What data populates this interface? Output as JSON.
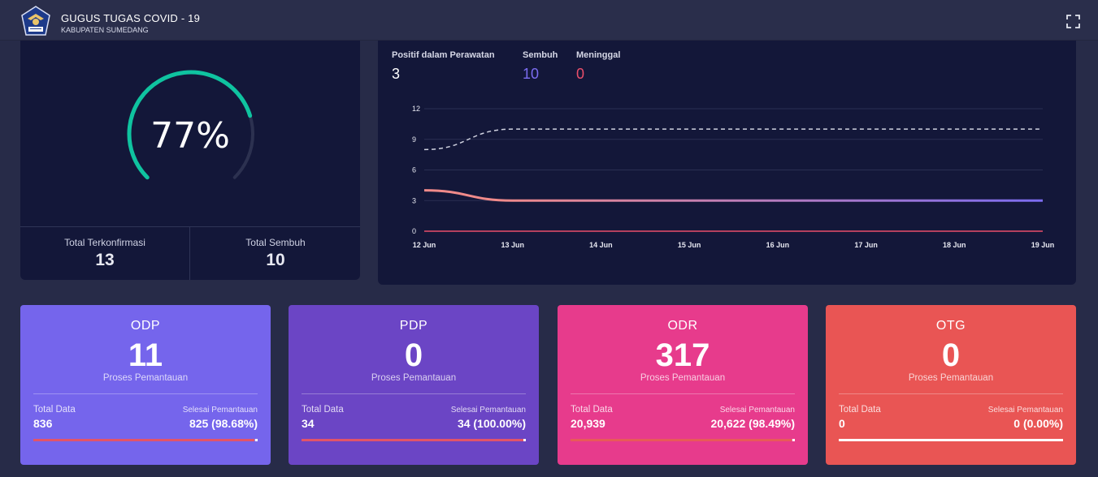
{
  "header": {
    "title": "GUGUS TUGAS COVID - 19",
    "subtitle": "KABUPATEN SUMEDANG",
    "logo_icon": "garuda-emblem-icon",
    "fullscreen_icon": "fullscreen-icon"
  },
  "gauge": {
    "percent_label": "77%",
    "percent": 0.77,
    "color": "#0fc3a0",
    "total_confirmed_label": "Total Terkonfirmasi",
    "total_confirmed": "13",
    "total_recovered_label": "Total Sembuh",
    "total_recovered": "10"
  },
  "legend": {
    "positive_label": "Positif dalam Perawatan",
    "positive_value": "3",
    "positive_color": "#ffffff",
    "recovered_label": "Sembuh",
    "recovered_value": "10",
    "recovered_color": "#7b6cf0",
    "died_label": "Meninggal",
    "died_value": "0",
    "died_color": "#ea4f6a"
  },
  "chart_data": {
    "type": "line",
    "x": [
      "12 Jun",
      "13 Jun",
      "14 Jun",
      "15 Jun",
      "16 Jun",
      "17 Jun",
      "18 Jun",
      "19 Jun"
    ],
    "ylim": [
      0,
      12
    ],
    "yticks": [
      "0",
      "3",
      "6",
      "9",
      "12"
    ],
    "grid": true,
    "series": [
      {
        "name": "Positif dalam Perawatan",
        "values": [
          4,
          3,
          3,
          3,
          3,
          3,
          3,
          3
        ],
        "color_start": "#f08a8a",
        "color_end": "#7b6cf0"
      },
      {
        "name": "Sembuh",
        "values": [
          8,
          10,
          10,
          10,
          10,
          10,
          10,
          10
        ],
        "color": "#d0d2e0",
        "dashed": true
      },
      {
        "name": "Meninggal",
        "values": [
          0,
          0,
          0,
          0,
          0,
          0,
          0,
          0
        ],
        "color": "#ea4f6a"
      }
    ]
  },
  "cards": [
    {
      "title": "ODP",
      "value": "11",
      "sub": "Proses Pemantauan",
      "total_label": "Total Data",
      "total": "836",
      "done_label": "Selesai Pemantauan",
      "done": "825 (98.68%)",
      "progress": 0.9868,
      "bg": "#7565ec",
      "bar": "#e25469"
    },
    {
      "title": "PDP",
      "value": "0",
      "sub": "Proses Pemantauan",
      "total_label": "Total Data",
      "total": "34",
      "done_label": "Selesai Pemantauan",
      "done": "34 (100.00%)",
      "progress": 1.0,
      "bg": "#6b45c5",
      "bar": "#e25469"
    },
    {
      "title": "ODR",
      "value": "317",
      "sub": "Proses Pemantauan",
      "total_label": "Total Data",
      "total": "20,939",
      "done_label": "Selesai Pemantauan",
      "done": "20,622 (98.49%)",
      "progress": 0.9849,
      "bg": "#e73b8c",
      "bar": "#e85a58"
    },
    {
      "title": "OTG",
      "value": "0",
      "sub": "Proses Pemantauan",
      "total_label": "Total Data",
      "total": "0",
      "done_label": "Selesai Pemantauan",
      "done": "0 (0.00%)",
      "progress": 0.0,
      "bg": "#e95554",
      "bar": "#ffffff"
    }
  ]
}
